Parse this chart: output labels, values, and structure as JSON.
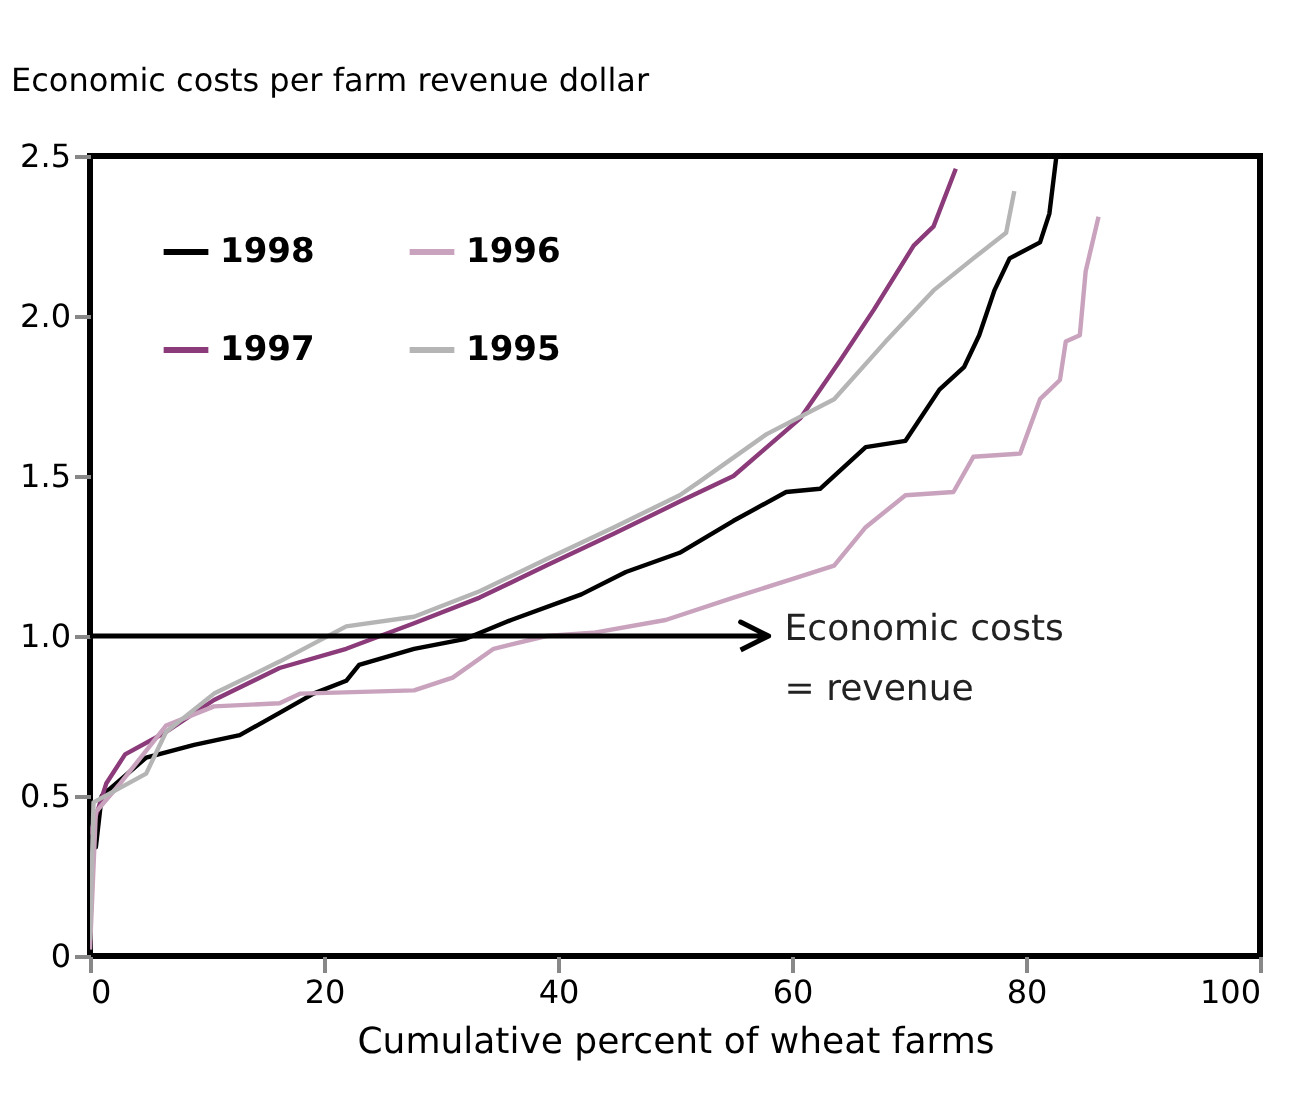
{
  "chart_data": {
    "type": "line",
    "ylabel": "Economic costs per farm revenue dollar",
    "xlabel": "Cumulative percent of wheat farms",
    "xlim": [
      0,
      100
    ],
    "xticks": [
      0,
      20,
      40,
      60,
      80,
      100
    ],
    "ylim": [
      0,
      2.5
    ],
    "yticks": [
      {
        "value": 0,
        "label": "0"
      },
      0.5,
      {
        "value": 1,
        "label": "1.0"
      },
      1.5,
      {
        "value": 2,
        "label": "2.0"
      },
      2.5
    ],
    "grid": false,
    "legend": "top left",
    "marker": "none",
    "line_style": "solid",
    "series": [
      {
        "name": "1998",
        "color": "#000000",
        "x": [
          0,
          0.5,
          1,
          4.8,
          8.9,
          12.8,
          16.2,
          19.1,
          21.9,
          23,
          27.7,
          32,
          36,
          42,
          45.8,
          50.4,
          55,
          59.5,
          62.4,
          66.3,
          69.7,
          72.6,
          74.7,
          76,
          77.3,
          78.6,
          81.2,
          82,
          82.6
        ],
        "values": [
          0.34,
          0.34,
          0.5,
          0.62,
          0.66,
          0.69,
          0.76,
          0.82,
          0.86,
          0.91,
          0.96,
          0.99,
          1.05,
          1.13,
          1.2,
          1.26,
          1.36,
          1.45,
          1.46,
          1.59,
          1.61,
          1.77,
          1.84,
          1.94,
          2.08,
          2.18,
          2.23,
          2.32,
          2.5
        ]
      },
      {
        "name": "1997",
        "color": "#8b3a7a",
        "x": [
          0,
          1.4,
          3,
          6.5,
          10.6,
          16.2,
          21.9,
          27.7,
          33.3,
          39,
          44.8,
          50.4,
          55,
          60.7,
          64.1,
          67,
          70.4,
          72.1,
          74
        ],
        "values": [
          0.38,
          0.54,
          0.63,
          0.7,
          0.8,
          0.9,
          0.96,
          1.04,
          1.12,
          1.22,
          1.32,
          1.42,
          1.5,
          1.68,
          1.86,
          2.02,
          2.22,
          2.28,
          2.46
        ]
      },
      {
        "name": "1996",
        "color": "#c9a2bd",
        "x": [
          0,
          0.5,
          2.6,
          6.5,
          10.6,
          16.2,
          18,
          27.7,
          31,
          34.5,
          39,
          43,
          49.2,
          55,
          60.2,
          63.6,
          66.3,
          69.7,
          73.8,
          75.5,
          79.5,
          81.2,
          82.9,
          83.4,
          84.6,
          85.1,
          86.2
        ],
        "values": [
          0.02,
          0.45,
          0.54,
          0.72,
          0.78,
          0.79,
          0.82,
          0.83,
          0.87,
          0.96,
          1.0,
          1.01,
          1.05,
          1.12,
          1.18,
          1.22,
          1.34,
          1.44,
          1.45,
          1.56,
          1.57,
          1.74,
          1.8,
          1.92,
          1.94,
          2.14,
          2.31
        ]
      },
      {
        "name": "1995",
        "color": "#b5b5b5",
        "x": [
          0,
          0.3,
          4.8,
          6.5,
          10.6,
          16.2,
          21.9,
          27.7,
          33.3,
          39,
          44.8,
          50.4,
          52,
          57.8,
          63.6,
          68,
          72.1,
          75.5,
          78.3,
          79
        ],
        "values": [
          0.05,
          0.48,
          0.57,
          0.7,
          0.82,
          0.92,
          1.03,
          1.06,
          1.14,
          1.24,
          1.34,
          1.44,
          1.48,
          1.63,
          1.74,
          1.92,
          2.08,
          2.18,
          2.26,
          2.39
        ]
      }
    ],
    "ref_lines": [
      {
        "axis": "y",
        "value": 1.0,
        "label": "Economic costs\n= revenue",
        "color": "#000000"
      }
    ]
  }
}
